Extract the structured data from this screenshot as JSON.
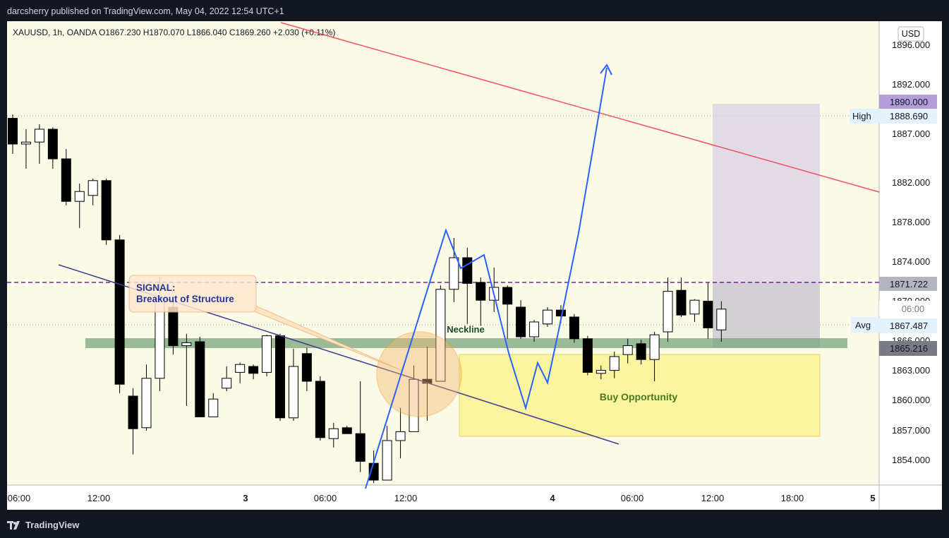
{
  "header": {
    "publish_line": "darcsherry published on TradingView.com, May 04, 2022 12:54 UTC+1"
  },
  "footer": {
    "brand": "TradingView"
  },
  "chart_data": {
    "type": "candlestick",
    "symbol_line": "XAUUSD, 1h, OANDA  O1867.230  H1870.070  L1866.040  C1869.260  +2.030 (+0.11%)",
    "currency": "USD",
    "price_ticks": [
      "1896.000",
      "1892.000",
      "1887.000",
      "1882.000",
      "1878.000",
      "1874.000",
      "1870.000",
      "1866.000",
      "1863.000",
      "1860.000",
      "1857.000",
      "1854.000"
    ],
    "time_ticks": [
      "06:00",
      "12:00",
      "3",
      "06:00",
      "12:00",
      "4",
      "06:00",
      "12:00",
      "18:00",
      "5"
    ],
    "price_tags": [
      {
        "label": "",
        "value": "1890.000",
        "color": "#b39ddb"
      },
      {
        "label": "High",
        "value": "1888.690",
        "color": "#e3f2fd"
      },
      {
        "label": "",
        "value": "1871.722",
        "color": "#b2b5be"
      },
      {
        "label": "",
        "value": "06:00",
        "color": "#ffffff"
      },
      {
        "label": "Avg",
        "value": "1867.487",
        "color": "#e3f2fd"
      },
      {
        "label": "",
        "value": "1865.216",
        "color": "#787b86"
      }
    ],
    "annotations": {
      "signal": "SIGNAL:",
      "signal_sub": "Breakout of Structure",
      "neckline": "Neckline",
      "buy": "Buy Opportunity"
    },
    "candles": [
      {
        "o": 1888.6,
        "h": 1889.0,
        "l": 1885.0,
        "c": 1886.0
      },
      {
        "o": 1886.0,
        "h": 1887.5,
        "l": 1883.5,
        "c": 1886.2
      },
      {
        "o": 1886.2,
        "h": 1888.0,
        "l": 1884.0,
        "c": 1887.5
      },
      {
        "o": 1887.5,
        "h": 1887.7,
        "l": 1883.5,
        "c": 1884.5
      },
      {
        "o": 1884.5,
        "h": 1885.5,
        "l": 1879.8,
        "c": 1880.2
      },
      {
        "o": 1880.2,
        "h": 1882.0,
        "l": 1877.5,
        "c": 1881.2
      },
      {
        "o": 1880.8,
        "h": 1882.5,
        "l": 1879.8,
        "c": 1882.3
      },
      {
        "o": 1882.3,
        "h": 1882.5,
        "l": 1875.8,
        "c": 1876.3
      },
      {
        "o": 1876.3,
        "h": 1876.8,
        "l": 1860.8,
        "c": 1861.7
      },
      {
        "o": 1860.5,
        "h": 1861.3,
        "l": 1854.6,
        "c": 1857.2
      },
      {
        "o": 1857.3,
        "h": 1863.7,
        "l": 1857.0,
        "c": 1862.3
      },
      {
        "o": 1862.3,
        "h": 1872.5,
        "l": 1861.0,
        "c": 1870.3
      },
      {
        "o": 1869.5,
        "h": 1870.5,
        "l": 1864.7,
        "c": 1865.6
      },
      {
        "o": 1865.6,
        "h": 1866.8,
        "l": 1859.5,
        "c": 1865.9
      },
      {
        "o": 1866.0,
        "h": 1866.5,
        "l": 1858.4,
        "c": 1858.4
      },
      {
        "o": 1858.4,
        "h": 1860.8,
        "l": 1858.4,
        "c": 1860.2
      },
      {
        "o": 1861.3,
        "h": 1863.5,
        "l": 1861.0,
        "c": 1862.3
      },
      {
        "o": 1862.9,
        "h": 1863.9,
        "l": 1861.8,
        "c": 1863.7
      },
      {
        "o": 1863.5,
        "h": 1863.7,
        "l": 1862.2,
        "c": 1862.8
      },
      {
        "o": 1862.9,
        "h": 1866.7,
        "l": 1862.5,
        "c": 1866.6
      },
      {
        "o": 1866.6,
        "h": 1866.8,
        "l": 1858.0,
        "c": 1858.3
      },
      {
        "o": 1858.3,
        "h": 1865.3,
        "l": 1858.0,
        "c": 1863.5
      },
      {
        "o": 1864.8,
        "h": 1865.4,
        "l": 1861.0,
        "c": 1862.0
      },
      {
        "o": 1862.0,
        "h": 1862.5,
        "l": 1856.0,
        "c": 1856.3
      },
      {
        "o": 1856.2,
        "h": 1857.8,
        "l": 1855.3,
        "c": 1857.2
      },
      {
        "o": 1857.3,
        "h": 1857.5,
        "l": 1856.8,
        "c": 1856.7
      },
      {
        "o": 1856.7,
        "h": 1862.0,
        "l": 1852.8,
        "c": 1853.9
      },
      {
        "o": 1853.7,
        "h": 1855.0,
        "l": 1851.7,
        "c": 1852.0
      },
      {
        "o": 1852.0,
        "h": 1857.5,
        "l": 1852.0,
        "c": 1856.0
      },
      {
        "o": 1856.0,
        "h": 1859.3,
        "l": 1854.2,
        "c": 1856.9
      },
      {
        "o": 1856.9,
        "h": 1863.6,
        "l": 1856.9,
        "c": 1862.2
      },
      {
        "o": 1862.2,
        "h": 1865.5,
        "l": 1858.0,
        "c": 1861.8
      },
      {
        "o": 1862.0,
        "h": 1871.7,
        "l": 1862.0,
        "c": 1871.3
      },
      {
        "o": 1871.3,
        "h": 1876.5,
        "l": 1870.0,
        "c": 1874.5
      },
      {
        "o": 1874.5,
        "h": 1875.5,
        "l": 1867.8,
        "c": 1871.9
      },
      {
        "o": 1872.0,
        "h": 1872.5,
        "l": 1867.6,
        "c": 1870.2
      },
      {
        "o": 1870.2,
        "h": 1873.5,
        "l": 1869.0,
        "c": 1871.5
      },
      {
        "o": 1871.5,
        "h": 1871.7,
        "l": 1866.3,
        "c": 1869.8
      },
      {
        "o": 1869.5,
        "h": 1870.2,
        "l": 1866.3,
        "c": 1866.5
      },
      {
        "o": 1866.5,
        "h": 1868.2,
        "l": 1866.0,
        "c": 1868.0
      },
      {
        "o": 1867.8,
        "h": 1869.5,
        "l": 1867.5,
        "c": 1869.2
      },
      {
        "o": 1869.2,
        "h": 1869.7,
        "l": 1867.9,
        "c": 1868.6
      },
      {
        "o": 1868.5,
        "h": 1868.8,
        "l": 1865.9,
        "c": 1866.3
      },
      {
        "o": 1866.3,
        "h": 1866.6,
        "l": 1862.6,
        "c": 1862.9
      },
      {
        "o": 1862.8,
        "h": 1863.6,
        "l": 1862.2,
        "c": 1863.1
      },
      {
        "o": 1863.1,
        "h": 1865.0,
        "l": 1862.3,
        "c": 1864.5
      },
      {
        "o": 1864.7,
        "h": 1866.3,
        "l": 1863.8,
        "c": 1865.6
      },
      {
        "o": 1865.8,
        "h": 1866.2,
        "l": 1863.7,
        "c": 1864.2
      },
      {
        "o": 1864.2,
        "h": 1867.0,
        "l": 1862.0,
        "c": 1866.7
      },
      {
        "o": 1867.0,
        "h": 1872.5,
        "l": 1866.0,
        "c": 1871.1
      },
      {
        "o": 1871.2,
        "h": 1872.5,
        "l": 1868.5,
        "c": 1868.7
      },
      {
        "o": 1868.8,
        "h": 1870.3,
        "l": 1868.0,
        "c": 1870.2
      },
      {
        "o": 1870.1,
        "h": 1872.0,
        "l": 1866.3,
        "c": 1867.4
      },
      {
        "o": 1867.2,
        "h": 1870.1,
        "l": 1866.0,
        "c": 1869.3
      }
    ]
  }
}
